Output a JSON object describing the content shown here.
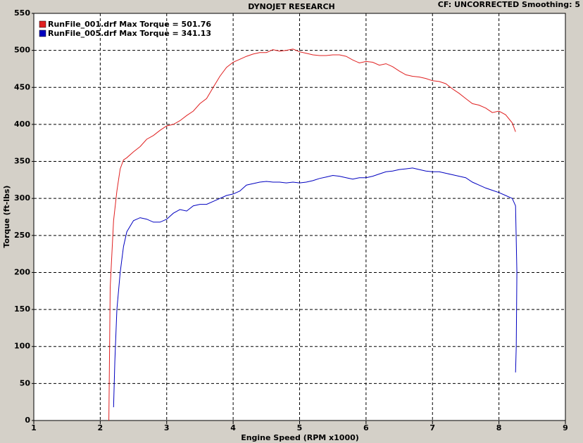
{
  "chart_data": {
    "type": "line",
    "title": "DYNOJET RESEARCH",
    "header_right": "CF: UNCORRECTED  Smoothing: 5",
    "x_label": "Engine Speed (RPM x1000)",
    "y_label": "Torque (ft-lbs)",
    "xlim": [
      1,
      9
    ],
    "ylim": [
      0,
      550
    ],
    "xticks": [
      1,
      2,
      3,
      4,
      5,
      6,
      7,
      8,
      9
    ],
    "yticks": [
      0,
      50,
      100,
      150,
      200,
      250,
      300,
      350,
      400,
      450,
      500,
      550
    ],
    "grid": true,
    "series": [
      {
        "name": "RunFile_001.drf Max Torque = 501.76",
        "color": "#e02020",
        "x": [
          2.13,
          2.15,
          2.2,
          2.25,
          2.3,
          2.35,
          2.4,
          2.5,
          2.6,
          2.7,
          2.8,
          2.9,
          3.0,
          3.1,
          3.2,
          3.3,
          3.4,
          3.5,
          3.6,
          3.7,
          3.8,
          3.9,
          4.0,
          4.1,
          4.2,
          4.3,
          4.4,
          4.5,
          4.6,
          4.7,
          4.8,
          4.9,
          5.0,
          5.1,
          5.2,
          5.3,
          5.4,
          5.5,
          5.6,
          5.7,
          5.8,
          5.9,
          6.0,
          6.1,
          6.2,
          6.3,
          6.4,
          6.5,
          6.6,
          6.7,
          6.8,
          6.9,
          7.0,
          7.1,
          7.2,
          7.3,
          7.4,
          7.5,
          7.6,
          7.7,
          7.8,
          7.9,
          8.0,
          8.1,
          8.2,
          8.25
        ],
        "values": [
          0,
          180,
          270,
          310,
          340,
          352,
          355,
          363,
          370,
          380,
          385,
          392,
          398,
          400,
          405,
          412,
          418,
          428,
          435,
          450,
          465,
          477,
          484,
          488,
          492,
          495,
          497,
          497,
          501,
          499,
          500,
          501.76,
          498,
          496,
          494,
          493,
          493,
          494,
          494,
          492,
          487,
          483,
          485,
          484,
          480,
          482,
          478,
          472,
          467,
          465,
          464,
          462,
          459,
          458,
          455,
          448,
          442,
          435,
          428,
          426,
          422,
          416,
          418,
          413,
          402,
          390
        ]
      },
      {
        "name": "RunFile_005.drf Max Torque = 341.13",
        "color": "#0000c0",
        "x": [
          2.2,
          2.22,
          2.25,
          2.3,
          2.35,
          2.4,
          2.5,
          2.6,
          2.7,
          2.8,
          2.9,
          3.0,
          3.1,
          3.2,
          3.3,
          3.4,
          3.5,
          3.6,
          3.7,
          3.8,
          3.9,
          4.0,
          4.1,
          4.2,
          4.3,
          4.4,
          4.5,
          4.6,
          4.7,
          4.8,
          4.9,
          5.0,
          5.1,
          5.2,
          5.3,
          5.4,
          5.5,
          5.6,
          5.7,
          5.8,
          5.9,
          6.0,
          6.1,
          6.2,
          6.3,
          6.4,
          6.5,
          6.6,
          6.7,
          6.8,
          6.9,
          7.0,
          7.1,
          7.2,
          7.3,
          7.4,
          7.5,
          7.6,
          7.7,
          7.8,
          7.9,
          8.0,
          8.1,
          8.2,
          8.25,
          8.27,
          8.26,
          8.25
        ],
        "values": [
          18,
          80,
          150,
          200,
          235,
          255,
          270,
          274,
          272,
          268,
          268,
          272,
          280,
          285,
          283,
          290,
          292,
          292,
          296,
          300,
          304,
          306,
          310,
          318,
          320,
          322,
          323,
          322,
          322,
          321,
          322,
          321,
          322,
          324,
          327,
          329,
          331,
          330,
          328,
          326,
          328,
          328,
          330,
          333,
          336,
          337,
          339,
          340,
          341.13,
          339,
          337,
          336,
          336,
          334,
          332,
          330,
          328,
          322,
          318,
          314,
          311,
          308,
          304,
          300,
          290,
          200,
          100,
          65
        ]
      }
    ]
  }
}
